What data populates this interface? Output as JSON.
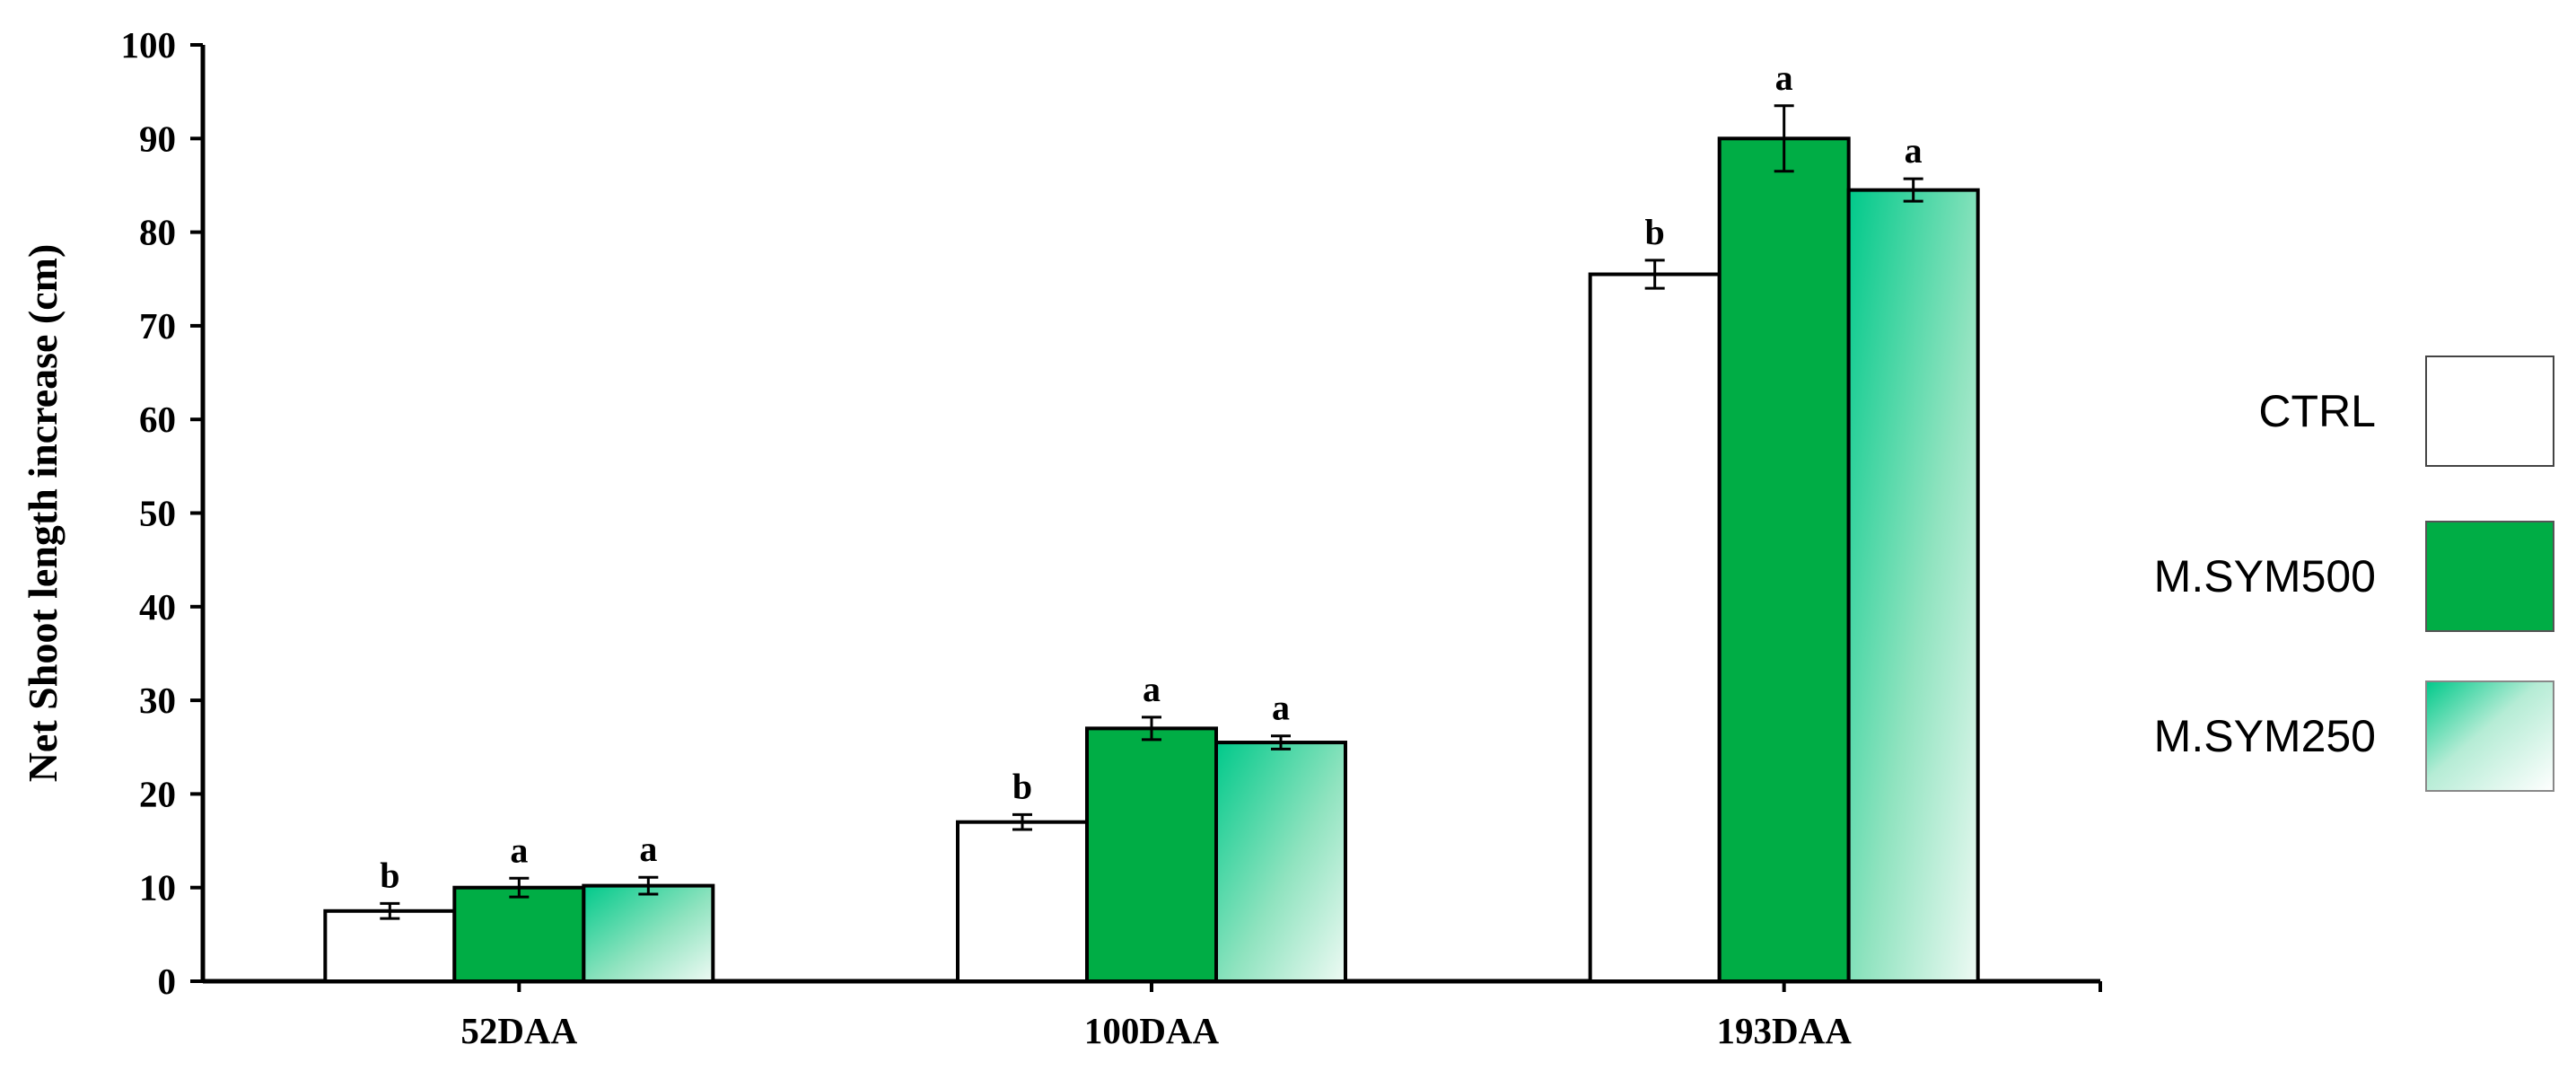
{
  "chart_data": {
    "type": "bar",
    "title": "",
    "xlabel": "",
    "ylabel": "Net Shoot length increase (cm)",
    "ylim": [
      0,
      100
    ],
    "yticks": [
      0,
      10,
      20,
      30,
      40,
      50,
      60,
      70,
      80,
      90,
      100
    ],
    "categories": [
      "52DAA",
      "100DAA",
      "193DAA"
    ],
    "legend_position": "right",
    "series": [
      {
        "name": "CTRL",
        "fill": "#ffffff",
        "values": [
          7.5,
          17.0,
          75.5
        ],
        "errors": [
          0.8,
          0.8,
          1.5
        ],
        "letters": [
          "b",
          "b",
          "b"
        ]
      },
      {
        "name": "M.SYM500",
        "fill": "#00ad45",
        "values": [
          10.0,
          27.0,
          90.0
        ],
        "errors": [
          1.0,
          1.2,
          3.5
        ],
        "letters": [
          "a",
          "a",
          "a"
        ]
      },
      {
        "name": "M.SYM250",
        "fill": "gradient",
        "gradient_colors": [
          "#00c98a",
          "#e8f8f0"
        ],
        "values": [
          10.2,
          25.5,
          84.5
        ],
        "errors": [
          0.9,
          0.7,
          1.2
        ],
        "letters": [
          "a",
          "a",
          "a"
        ]
      }
    ],
    "grid": false
  }
}
